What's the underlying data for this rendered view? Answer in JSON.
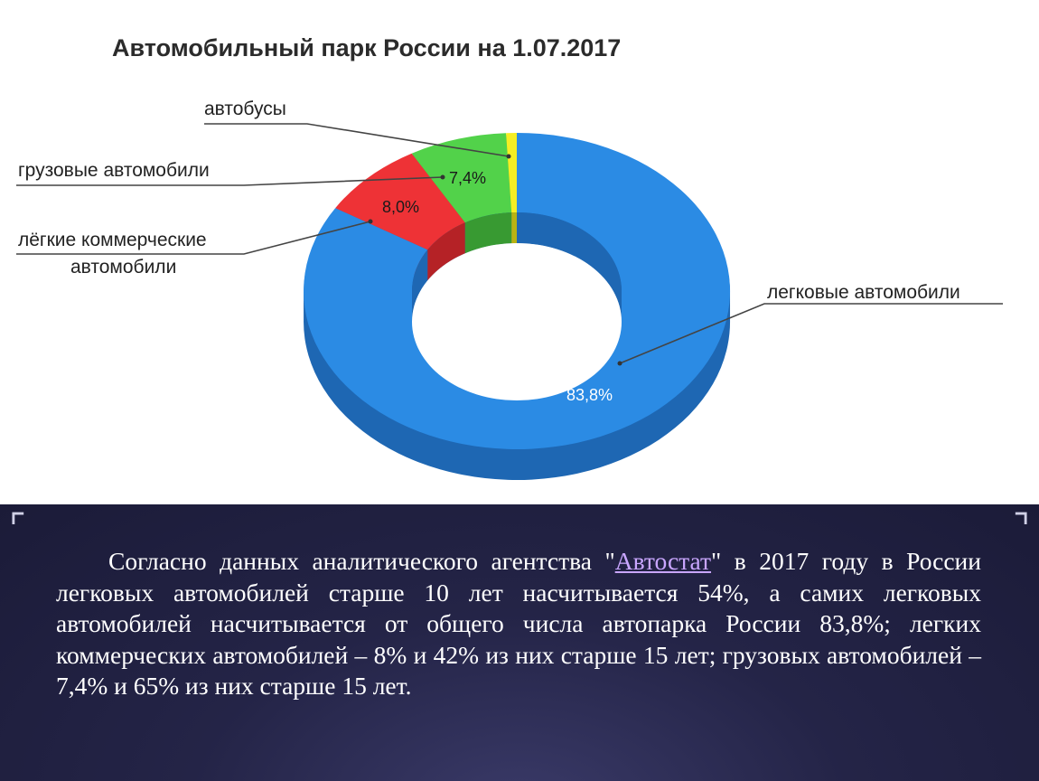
{
  "chart_data": {
    "type": "pie",
    "donut": true,
    "title": "Автомобильный парк России на 1.07.2017",
    "slices": [
      {
        "label": "легковые автомобили",
        "value": 83.8,
        "value_label": "83,8%",
        "color": "#2b8be4",
        "side_color": "#1e67b3"
      },
      {
        "label": "лёгкие коммерческие автомобили",
        "value": 8.0,
        "value_label": "8,0%",
        "color": "#ee3236",
        "side_color": "#b52226"
      },
      {
        "label": "грузовые автомобили",
        "value": 7.4,
        "value_label": "7,4%",
        "color": "#52d24a",
        "side_color": "#389a32"
      },
      {
        "label": "автобусы",
        "value": 0.8,
        "value_label": "",
        "color": "#f5ee24",
        "side_color": "#b9b312"
      }
    ],
    "label_lines": {
      "bus": "автобусы",
      "truck": "грузовые автомобили",
      "lcv_line1": "лёгкие коммерческие",
      "lcv_line2": "автомобили",
      "car": "легковые автомобили"
    },
    "legend": "none"
  },
  "text": {
    "part1": "Согласно данных  аналитического агентства \"",
    "link": "Автостат",
    "part2": "\" в 2017 году в России легковых автомобилей старше 10 лет насчитывается 54%, а самих легковых автомобилей насчитывается от общего числа автопарка России 83,8%; легких коммерческих автомобилей – 8% и 42% из них старше 15 лет; грузовых автомобилей – 7,4% и 65% из них старше 15 лет."
  }
}
